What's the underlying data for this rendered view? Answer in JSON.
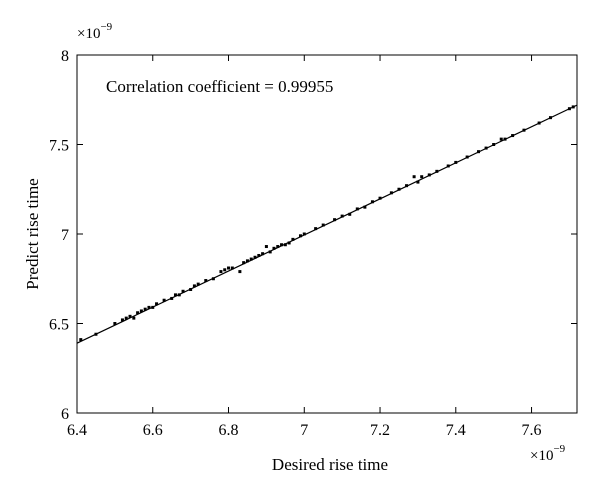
{
  "chart_data": {
    "type": "scatter",
    "xlabel": "Desired rise time",
    "ylabel": "Predict rise time",
    "annotation": "Correlation coefficient = 0.99955",
    "x_exponent": "×10",
    "x_exponent_power": "−9",
    "y_exponent": "×10",
    "y_exponent_power": "−9",
    "xlim": [
      6.4,
      7.72
    ],
    "ylim": [
      6.0,
      8.0
    ],
    "x_ticks": [
      6.4,
      6.6,
      6.8,
      7.0,
      7.2,
      7.4,
      7.6
    ],
    "x_tick_labels": [
      "6.4",
      "6.6",
      "6.8",
      "7",
      "7.2",
      "7.4",
      "7.6"
    ],
    "y_ticks": [
      6.0,
      6.5,
      7.0,
      7.5,
      8.0
    ],
    "y_tick_labels": [
      "6",
      "6.5",
      "7",
      "7.5",
      "8"
    ],
    "grid": false,
    "fit_line": {
      "x": [
        6.4,
        7.72
      ],
      "y": [
        6.39,
        7.72
      ]
    },
    "points": [
      [
        6.41,
        6.41
      ],
      [
        6.45,
        6.44
      ],
      [
        6.5,
        6.5
      ],
      [
        6.52,
        6.52
      ],
      [
        6.53,
        6.53
      ],
      [
        6.54,
        6.54
      ],
      [
        6.55,
        6.53
      ],
      [
        6.56,
        6.56
      ],
      [
        6.57,
        6.57
      ],
      [
        6.58,
        6.58
      ],
      [
        6.59,
        6.59
      ],
      [
        6.6,
        6.59
      ],
      [
        6.61,
        6.61
      ],
      [
        6.63,
        6.63
      ],
      [
        6.65,
        6.64
      ],
      [
        6.66,
        6.66
      ],
      [
        6.67,
        6.66
      ],
      [
        6.68,
        6.68
      ],
      [
        6.7,
        6.69
      ],
      [
        6.71,
        6.71
      ],
      [
        6.72,
        6.72
      ],
      [
        6.74,
        6.74
      ],
      [
        6.76,
        6.75
      ],
      [
        6.78,
        6.79
      ],
      [
        6.79,
        6.8
      ],
      [
        6.8,
        6.81
      ],
      [
        6.81,
        6.81
      ],
      [
        6.83,
        6.79
      ],
      [
        6.84,
        6.84
      ],
      [
        6.85,
        6.85
      ],
      [
        6.86,
        6.86
      ],
      [
        6.87,
        6.87
      ],
      [
        6.88,
        6.88
      ],
      [
        6.89,
        6.89
      ],
      [
        6.9,
        6.93
      ],
      [
        6.91,
        6.9
      ],
      [
        6.92,
        6.92
      ],
      [
        6.93,
        6.93
      ],
      [
        6.94,
        6.94
      ],
      [
        6.95,
        6.94
      ],
      [
        6.96,
        6.95
      ],
      [
        6.97,
        6.97
      ],
      [
        6.99,
        6.99
      ],
      [
        7.0,
        7.0
      ],
      [
        7.03,
        7.03
      ],
      [
        7.05,
        7.05
      ],
      [
        7.08,
        7.08
      ],
      [
        7.1,
        7.1
      ],
      [
        7.12,
        7.11
      ],
      [
        7.14,
        7.14
      ],
      [
        7.16,
        7.15
      ],
      [
        7.18,
        7.18
      ],
      [
        7.2,
        7.2
      ],
      [
        7.23,
        7.23
      ],
      [
        7.25,
        7.25
      ],
      [
        7.27,
        7.27
      ],
      [
        7.29,
        7.32
      ],
      [
        7.3,
        7.29
      ],
      [
        7.31,
        7.32
      ],
      [
        7.33,
        7.33
      ],
      [
        7.35,
        7.35
      ],
      [
        7.38,
        7.38
      ],
      [
        7.4,
        7.4
      ],
      [
        7.43,
        7.43
      ],
      [
        7.46,
        7.46
      ],
      [
        7.48,
        7.48
      ],
      [
        7.5,
        7.5
      ],
      [
        7.52,
        7.53
      ],
      [
        7.53,
        7.53
      ],
      [
        7.55,
        7.55
      ],
      [
        7.58,
        7.58
      ],
      [
        7.62,
        7.62
      ],
      [
        7.65,
        7.65
      ],
      [
        7.7,
        7.7
      ],
      [
        7.71,
        7.71
      ]
    ]
  }
}
